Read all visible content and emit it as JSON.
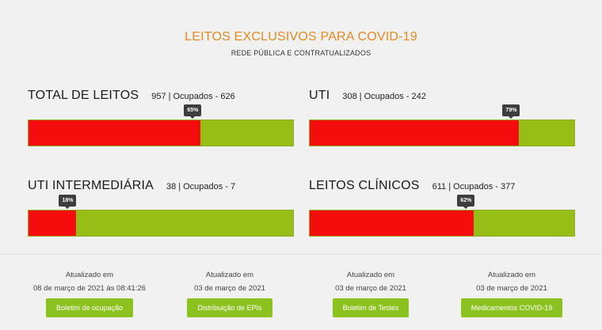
{
  "header": {
    "title": "LEITOS EXCLUSIVOS PARA COVID-19",
    "subtitle": "REDE PÚBLICA E CONTRATUALIZADOS"
  },
  "colors": {
    "occupied": "#f50d0d",
    "free": "#96be16",
    "accent": "#e8891f",
    "button": "#8cc21f"
  },
  "cards": [
    {
      "title": "TOTAL DE LEITOS",
      "total": "957",
      "occupied_text": "Ocupados - 626",
      "percent_label": "65%",
      "fill_fraction": 0.65
    },
    {
      "title": "UTI",
      "total": "308",
      "occupied_text": "Ocupados - 242",
      "percent_label": "79%",
      "fill_fraction": 0.79
    },
    {
      "title": "UTI INTERMEDIÁRIA",
      "total": "38",
      "occupied_text": "Ocupados - 7",
      "percent_label": "18%",
      "fill_fraction": 0.18
    },
    {
      "title": "LEITOS CLÍNICOS",
      "total": "611",
      "occupied_text": "Ocupados - 377",
      "percent_label": "62%",
      "fill_fraction": 0.62
    }
  ],
  "updates": [
    {
      "label": "Atualizado em",
      "date": "08 de março de 2021 às 08:41:26",
      "button": "Boletim de ocupação"
    },
    {
      "label": "Atualizado em",
      "date": "03 de março de 2021",
      "button": "Distribuição de EPIs"
    },
    {
      "label": "Atualizado em",
      "date": "03 de março de 2021",
      "button": "Boletim de Testes"
    },
    {
      "label": "Atualizado em",
      "date": "03 de março de 2021",
      "button": "Medicamentos COVID-19"
    }
  ]
}
